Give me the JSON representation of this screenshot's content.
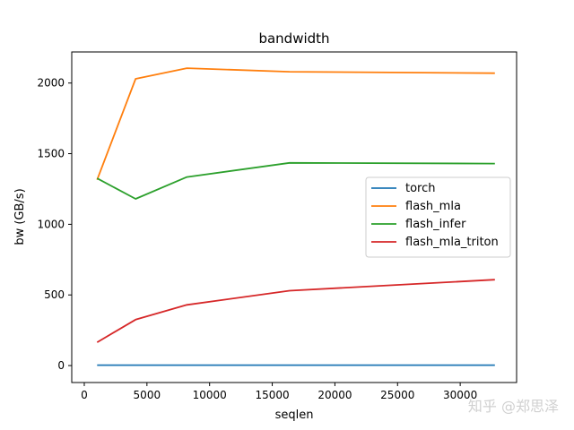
{
  "chart_data": {
    "type": "line",
    "title": "bandwidth",
    "xlabel": "seqlen",
    "ylabel": "bw (GB/s)",
    "xlim": [
      -1000,
      34500
    ],
    "ylim": [
      -120,
      2220
    ],
    "xticks": [
      0,
      5000,
      10000,
      15000,
      20000,
      25000,
      30000
    ],
    "yticks": [
      0,
      500,
      1000,
      1500,
      2000
    ],
    "grid": false,
    "legend_position": "center-right",
    "series": [
      {
        "name": "torch",
        "color": "#1f77b4",
        "x": [
          1024,
          4096,
          8192,
          16384,
          32768
        ],
        "y": [
          3,
          3,
          3,
          3,
          3
        ]
      },
      {
        "name": "flash_mla",
        "color": "#ff7f0e",
        "x": [
          1024,
          4096,
          8192,
          16384,
          32768
        ],
        "y": [
          1315,
          2030,
          2105,
          2080,
          2070
        ]
      },
      {
        "name": "flash_infer",
        "color": "#2ca02c",
        "x": [
          1024,
          4096,
          8192,
          16384,
          32768
        ],
        "y": [
          1325,
          1180,
          1335,
          1435,
          1430
        ]
      },
      {
        "name": "flash_mla_triton",
        "color": "#d62728",
        "x": [
          1024,
          4096,
          8192,
          16384,
          32768
        ],
        "y": [
          165,
          325,
          430,
          530,
          608
        ]
      }
    ]
  },
  "watermark": "知乎 @郑思泽"
}
